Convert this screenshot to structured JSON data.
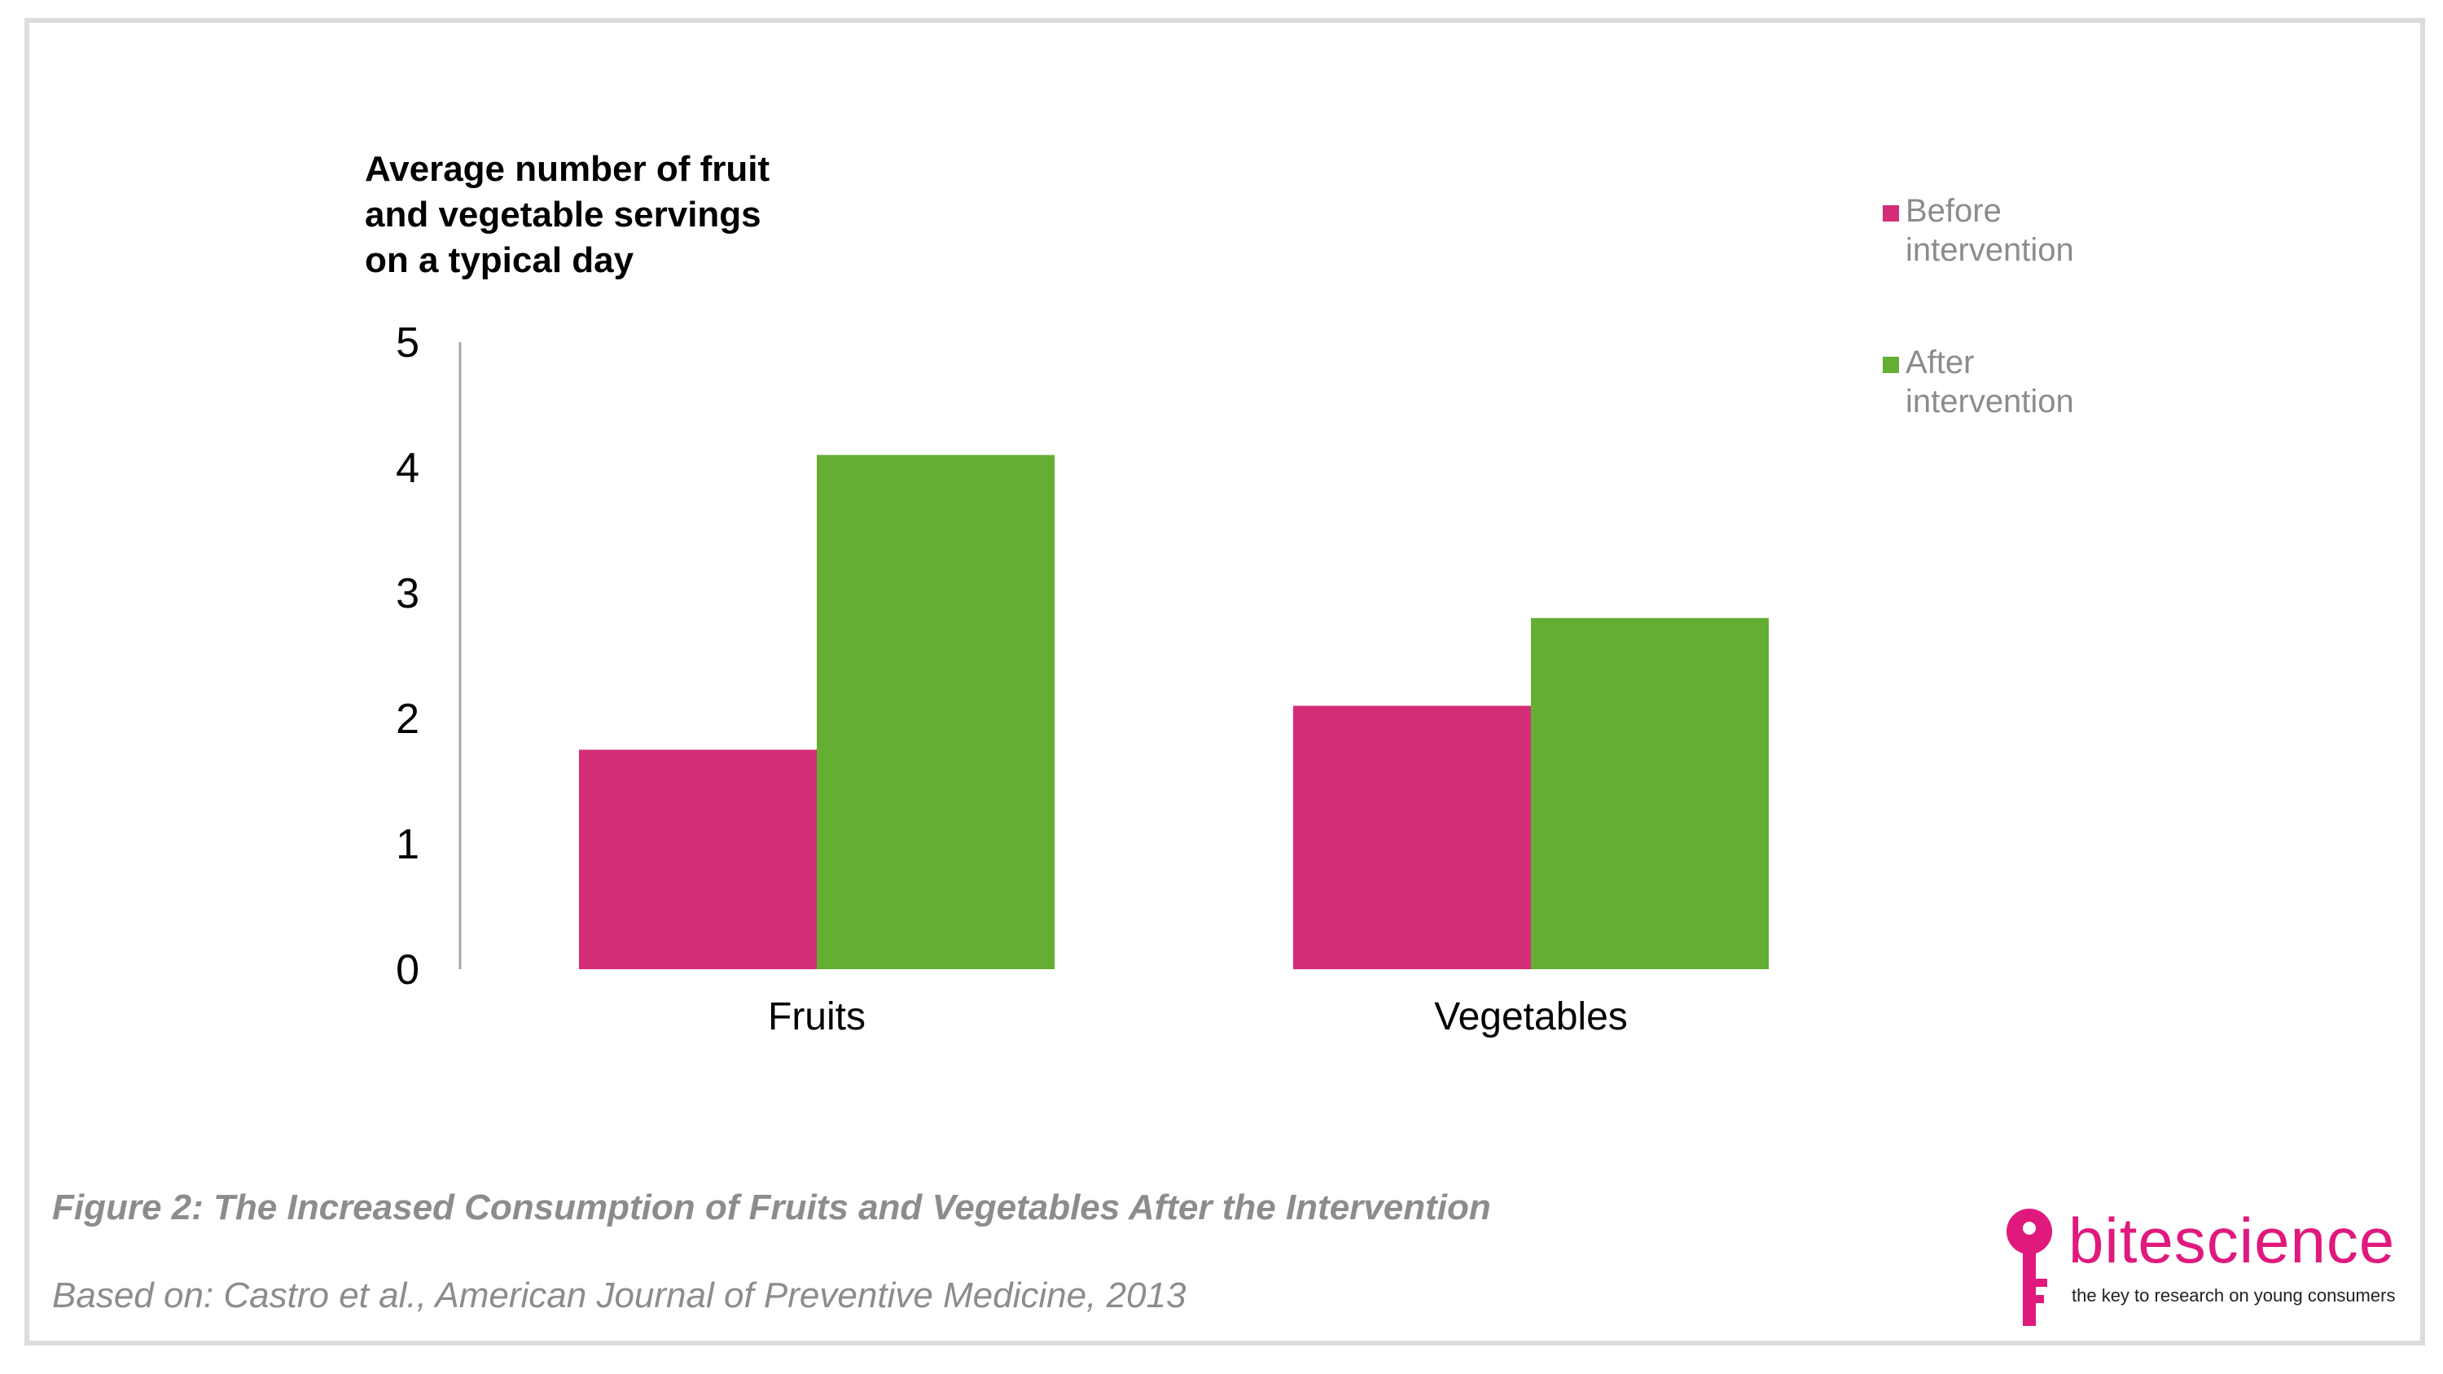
{
  "chart_data": {
    "type": "bar",
    "title": "Average number of fruit and vegetable servings on a typical day",
    "title_lines": [
      "Average number of fruit",
      "and vegetable servings",
      "on a typical day"
    ],
    "categories": [
      "Fruits",
      "Vegetables"
    ],
    "series": [
      {
        "name": "Before intervention",
        "name_lines": [
          "Before",
          "intervention"
        ],
        "values": [
          1.75,
          2.1
        ],
        "color": "#d42d78"
      },
      {
        "name": "After intervention",
        "name_lines": [
          "After",
          "intervention"
        ],
        "values": [
          4.1,
          2.8
        ],
        "color": "#64ae33"
      }
    ],
    "ylim": [
      0,
      5
    ],
    "yticks": [
      "0",
      "1",
      "2",
      "3",
      "4",
      "5"
    ],
    "grid": false,
    "legend": "top-right"
  },
  "caption": {
    "figure": "Figure 2: The Increased Consumption of Fruits and Vegetables After the Intervention",
    "source": "Based on: Castro et al., American Journal of Preventive Medicine, 2013"
  },
  "logo": {
    "name": "bitescience",
    "tagline": "the key to research on young consumers",
    "icon": "key-icon",
    "color": "#e0197d"
  }
}
